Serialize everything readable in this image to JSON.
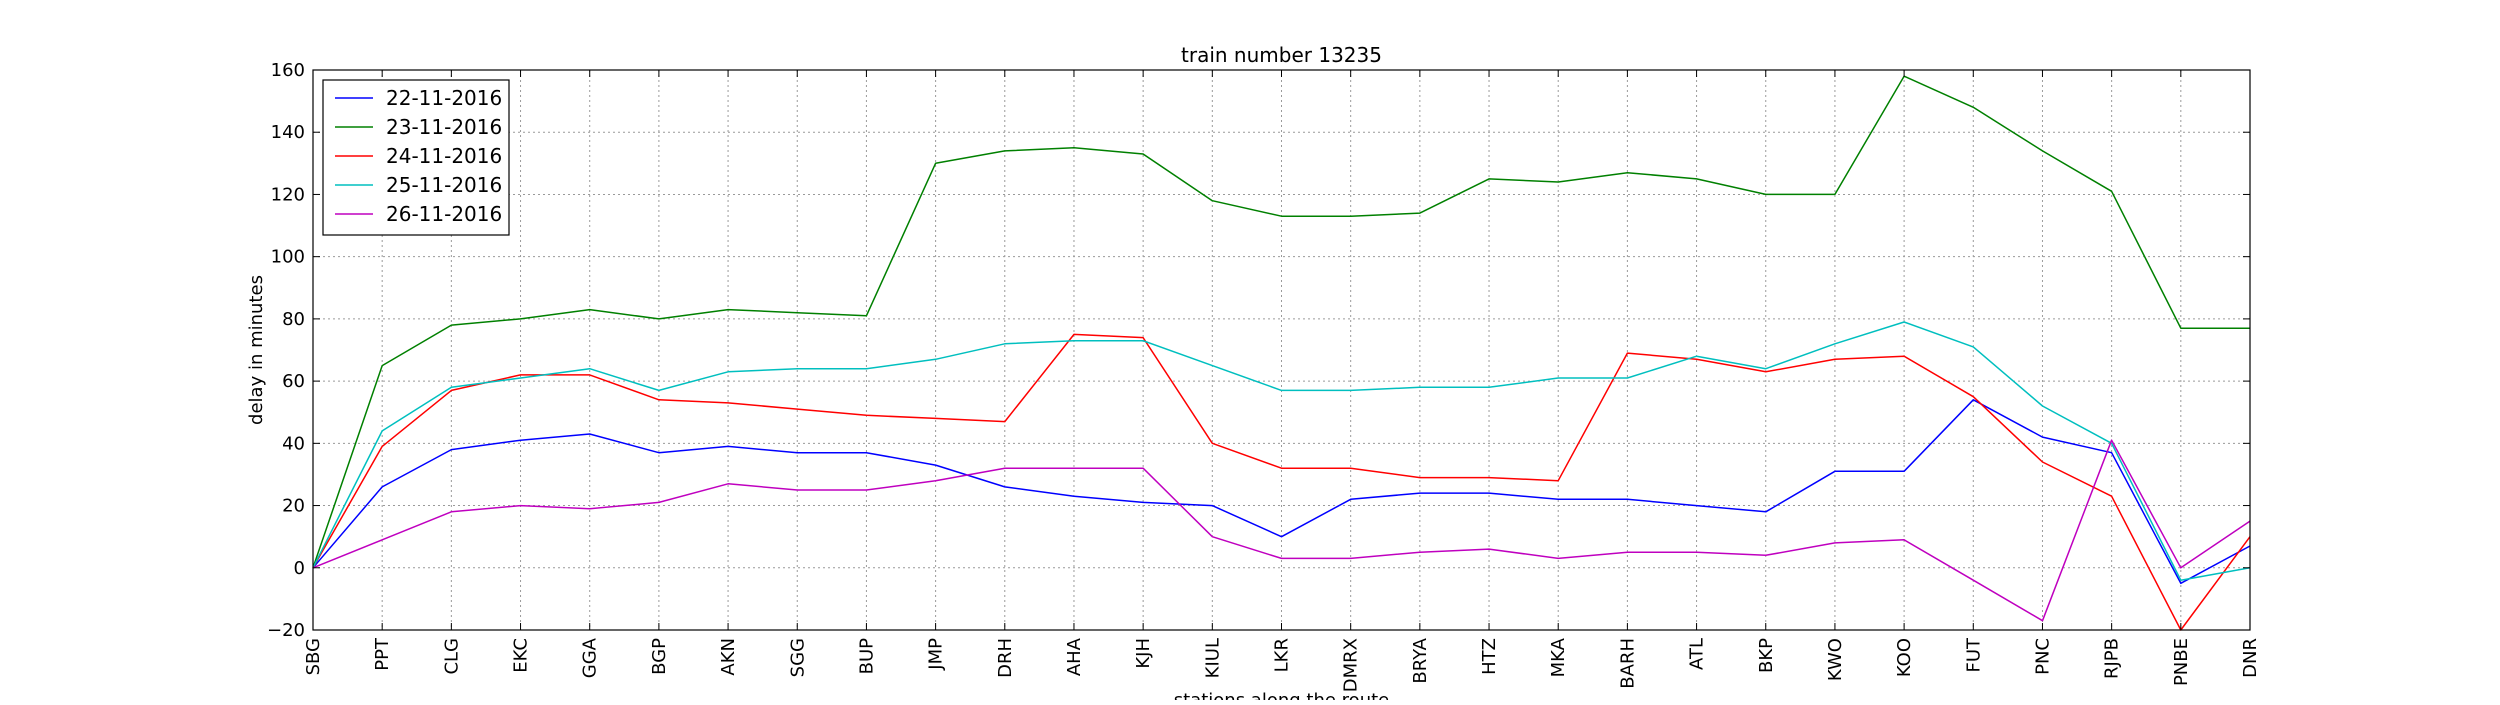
{
  "chart_data": {
    "type": "line",
    "title": "train number 13235",
    "xlabel": "stations along the route",
    "ylabel": "delay in minutes",
    "ylim": [
      -20,
      160
    ],
    "yticks": [
      -20,
      0,
      20,
      40,
      60,
      80,
      100,
      120,
      140,
      160
    ],
    "grid": true,
    "legend_position": "top-left",
    "categories": [
      "SBG",
      "PPT",
      "CLG",
      "EKC",
      "GGA",
      "BGP",
      "AKN",
      "SGG",
      "BUP",
      "JMP",
      "DRH",
      "AHA",
      "KJH",
      "KIUL",
      "LKR",
      "DMRX",
      "BRYA",
      "HTZ",
      "MKA",
      "BARH",
      "ATL",
      "BKP",
      "KWO",
      "KOO",
      "FUT",
      "PNC",
      "RJPB",
      "PNBE",
      "DNR"
    ],
    "series": [
      {
        "name": "22-11-2016",
        "color": "#0000ff",
        "values": [
          0,
          26,
          38,
          41,
          43,
          37,
          39,
          37,
          37,
          33,
          26,
          23,
          21,
          20,
          10,
          22,
          24,
          24,
          22,
          22,
          20,
          18,
          31,
          31,
          54,
          42,
          37,
          -5,
          7
        ]
      },
      {
        "name": "23-11-2016",
        "color": "#008000",
        "values": [
          0,
          65,
          78,
          80,
          83,
          80,
          83,
          82,
          81,
          130,
          134,
          135,
          133,
          118,
          113,
          113,
          114,
          125,
          124,
          127,
          125,
          120,
          120,
          158,
          148,
          134,
          121,
          77,
          77
        ]
      },
      {
        "name": "24-11-2016",
        "color": "#ff0000",
        "values": [
          0,
          39,
          57,
          62,
          62,
          54,
          53,
          51,
          49,
          48,
          47,
          75,
          74,
          40,
          32,
          32,
          29,
          29,
          28,
          69,
          67,
          63,
          67,
          68,
          55,
          34,
          23,
          -20,
          10
        ]
      },
      {
        "name": "25-11-2016",
        "color": "#00bfbf",
        "values": [
          0,
          44,
          58,
          61,
          64,
          57,
          63,
          64,
          64,
          67,
          72,
          73,
          73,
          65,
          57,
          57,
          58,
          58,
          61,
          61,
          68,
          64,
          72,
          79,
          71,
          52,
          40,
          -4,
          0
        ]
      },
      {
        "name": "26-11-2016",
        "color": "#bf00bf",
        "values": [
          0,
          9,
          18,
          20,
          19,
          21,
          27,
          25,
          25,
          28,
          32,
          32,
          32,
          10,
          3,
          3,
          5,
          6,
          3,
          5,
          5,
          4,
          8,
          9,
          -4,
          -17,
          41,
          0,
          15
        ]
      }
    ]
  }
}
